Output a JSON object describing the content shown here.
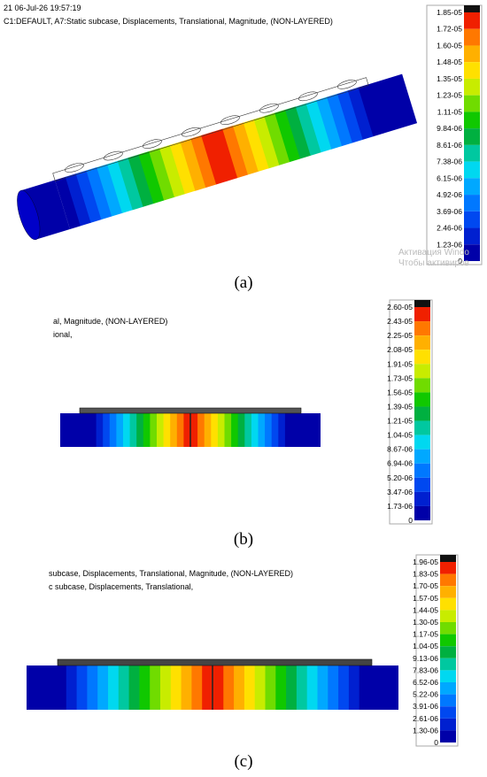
{
  "panels": [
    {
      "label": "(a)",
      "header": [
        "21 06-Jul-26 19:57:19",
        "C1:DEFAULT, A7:Static subcase, Displacements, Translational, Magnitude, (NON-LAYERED)"
      ],
      "legend": [
        "1.85-05",
        "1.72-05",
        "1.60-05",
        "1.48-05",
        "1.35-05",
        "1.23-05",
        "1.11-05",
        "9.84-06",
        "8.61-06",
        "7.38-06",
        "6.15-06",
        "4.92-06",
        "3.69-06",
        "2.46-06",
        "1.23-06",
        "0"
      ],
      "watermark": [
        "Активация Windo",
        "Чтобы активиров"
      ]
    },
    {
      "label": "(b)",
      "header": [
        "al, Magnitude, (NON-LAYERED)",
        "ional,"
      ],
      "legend": [
        "2.60-05",
        "2.43-05",
        "2.25-05",
        "2.08-05",
        "1.91-05",
        "1.73-05",
        "1.56-05",
        "1.39-05",
        "1.21-05",
        "1.04-05",
        "8.67-06",
        "6.94-06",
        "5.20-06",
        "3.47-06",
        "1.73-06",
        "0"
      ]
    },
    {
      "label": "(c)",
      "header": [
        "subcase, Displacements, Translational, Magnitude, (NON-LAYERED)",
        "c subcase, Displacements, Translational,"
      ],
      "legend": [
        "1.96-05",
        "1.83-05",
        "1.70-05",
        "1.57-05",
        "1.44-05",
        "1.30-05",
        "1.17-05",
        "1.04-05",
        "9.13-06",
        "7.83-06",
        "6.52-06",
        "5.22-06",
        "3.91-06",
        "2.61-06",
        "1.30-06",
        "0"
      ]
    }
  ]
}
